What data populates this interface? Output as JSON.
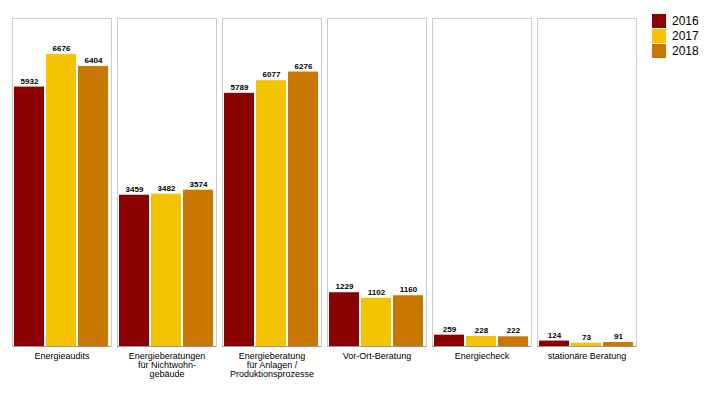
{
  "chart_data": {
    "type": "bar",
    "categories": [
      "Energieaudits",
      "Energieberatungen\nfür Nichtwohn-\ngebäude",
      "Energieberatung\nfür Anlagen /\nProduktionsprozesse",
      "Vor-Ort-Beratung",
      "Energiecheck",
      "stationäre Beratung"
    ],
    "series": [
      {
        "name": "2016",
        "color": "#8B0000",
        "values": [
          5932,
          3459,
          5789,
          1229,
          259,
          124
        ]
      },
      {
        "name": "2017",
        "color": "#F5C400",
        "values": [
          6676,
          3482,
          6077,
          1102,
          228,
          73
        ]
      },
      {
        "name": "2018",
        "color": "#C87800",
        "values": [
          6404,
          3574,
          6276,
          1160,
          222,
          91
        ]
      }
    ],
    "ylim": [
      0,
      7500
    ],
    "grid": false,
    "legend": "upper right",
    "data_labels": true,
    "tick_labels": "x"
  }
}
